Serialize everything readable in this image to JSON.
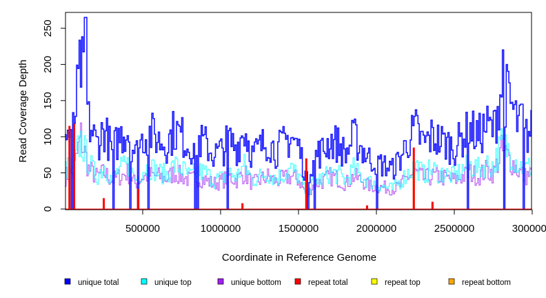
{
  "chart_data": {
    "type": "line",
    "title": "",
    "xlabel": "Coordinate in Reference Genome",
    "ylabel": "Read Coverage Depth",
    "xlim": [
      0,
      3000000
    ],
    "ylim": [
      0,
      272
    ],
    "x_ticks": [
      500000,
      1000000,
      1500000,
      2000000,
      2500000,
      3000000
    ],
    "x_tick_labels": [
      "500000",
      "1000000",
      "1500000",
      "2000000",
      "2500000",
      "3000000"
    ],
    "y_ticks": [
      0,
      50,
      100,
      150,
      200,
      250
    ],
    "y_tick_labels": [
      "0",
      "50",
      "100",
      "150",
      "200",
      "250"
    ],
    "x_step": 50000,
    "legend_position": "bottom",
    "series": [
      {
        "name": "unique total",
        "color": "#0000ff",
        "values": [
          100,
          110,
          200,
          120,
          90,
          110,
          80,
          100,
          110,
          75,
          100,
          105,
          95,
          90,
          110,
          100,
          85,
          95,
          90,
          75,
          80,
          95,
          85,
          110,
          75,
          85,
          95,
          80,
          90,
          100,
          85,
          40,
          75,
          80,
          95,
          90,
          75,
          100,
          85,
          70,
          65,
          60,
          55,
          70,
          95,
          110,
          90,
          100,
          95,
          90,
          85,
          100,
          110,
          100,
          115,
          110,
          170,
          150,
          120,
          100,
          110
        ],
        "peaks": [
          [
            130000,
            265
          ],
          [
            2810000,
            220
          ],
          [
            2930000,
            145
          ]
        ],
        "dips": [
          40000,
          310000,
          420000,
          470000,
          530000,
          830000,
          850000,
          1040000,
          1560000,
          1600000,
          2000000,
          2580000,
          2820000,
          2940000
        ]
      },
      {
        "name": "unique top",
        "color": "#00ffff",
        "values": [
          55,
          60,
          95,
          65,
          45,
          60,
          40,
          55,
          60,
          40,
          55,
          58,
          50,
          48,
          60,
          55,
          45,
          52,
          50,
          40,
          42,
          50,
          45,
          60,
          40,
          45,
          50,
          42,
          48,
          55,
          45,
          20,
          40,
          42,
          50,
          48,
          40,
          55,
          45,
          38,
          35,
          30,
          28,
          38,
          50,
          60,
          48,
          55,
          50,
          48,
          45,
          55,
          60,
          55,
          62,
          60,
          90,
          80,
          65,
          55,
          60
        ]
      },
      {
        "name": "unique bottom",
        "color": "#a020f0",
        "values": [
          45,
          50,
          100,
          55,
          45,
          50,
          40,
          45,
          50,
          35,
          45,
          47,
          45,
          42,
          50,
          45,
          40,
          43,
          40,
          35,
          38,
          45,
          40,
          50,
          35,
          40,
          45,
          38,
          42,
          45,
          40,
          20,
          35,
          38,
          45,
          42,
          35,
          45,
          40,
          32,
          30,
          30,
          27,
          32,
          45,
          50,
          42,
          45,
          45,
          42,
          40,
          45,
          50,
          45,
          53,
          50,
          80,
          70,
          55,
          45,
          50
        ]
      },
      {
        "name": "repeat total",
        "color": "#ff0000",
        "spikes": [
          [
            30000,
            115
          ],
          [
            60000,
            118
          ],
          [
            250000,
            15
          ],
          [
            470000,
            28
          ],
          [
            1140000,
            8
          ],
          [
            1550000,
            70
          ],
          [
            1940000,
            5
          ],
          [
            2240000,
            85
          ],
          [
            2360000,
            10
          ]
        ]
      },
      {
        "name": "repeat top",
        "color": "#ffff00",
        "spikes": []
      },
      {
        "name": "repeat bottom",
        "color": "#ffa500",
        "spikes": [
          [
            30000,
            60
          ],
          [
            250000,
            10
          ],
          [
            470000,
            20
          ],
          [
            1140000,
            5
          ],
          [
            1550000,
            40
          ],
          [
            2240000,
            50
          ],
          [
            2360000,
            8
          ]
        ]
      }
    ]
  }
}
